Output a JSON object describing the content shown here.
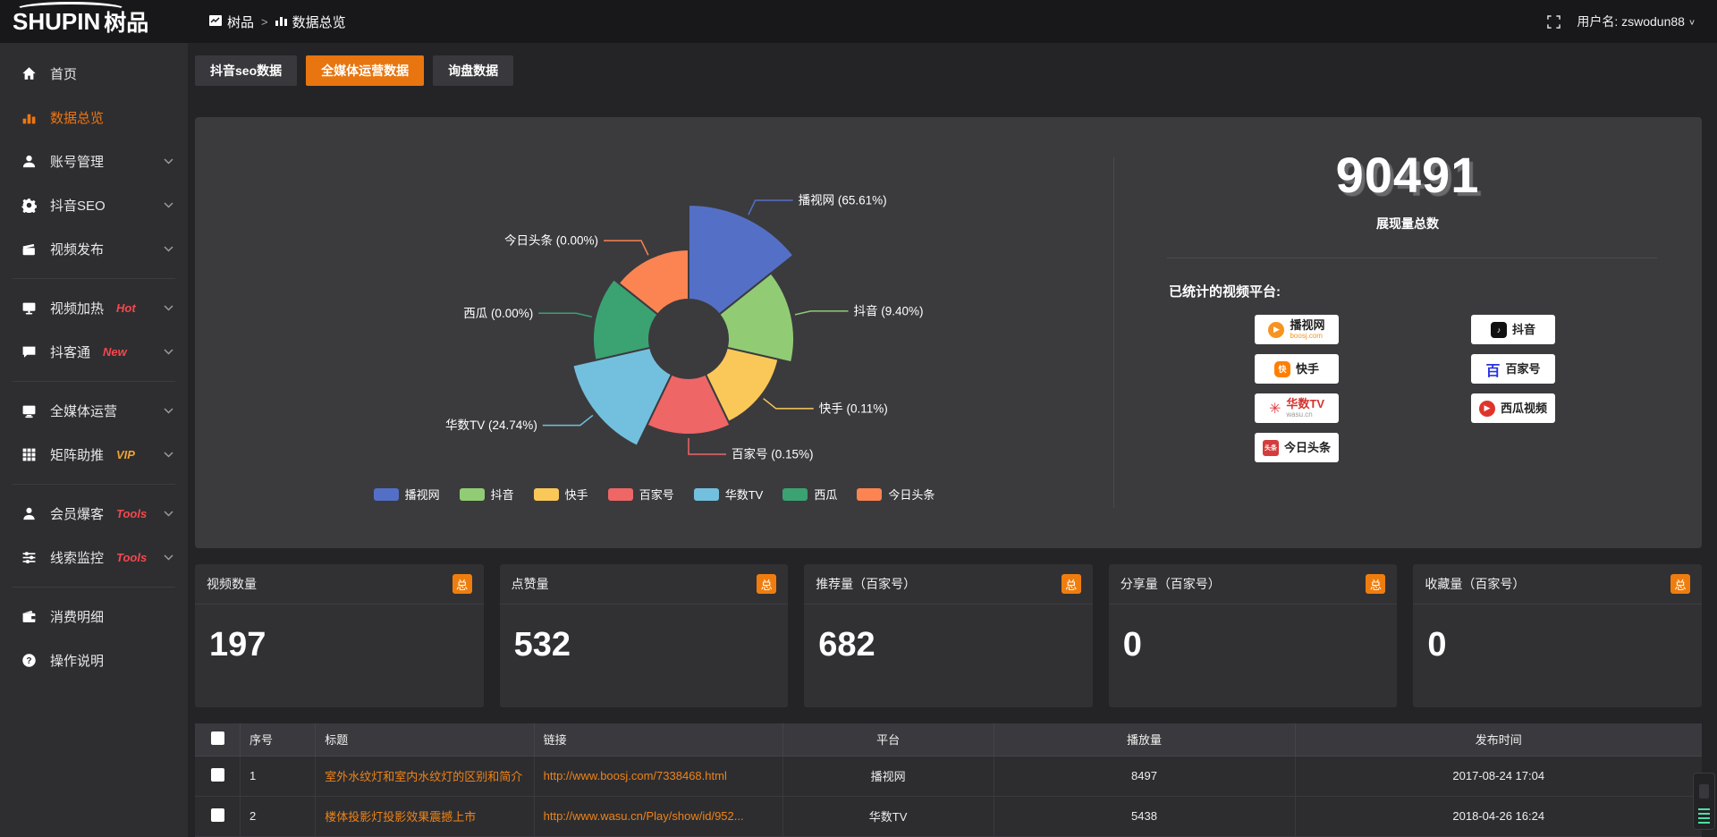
{
  "header": {
    "logo_text": "SHUPIN",
    "logo_cn": "树品",
    "breadcrumb": [
      "树品",
      "数据总览"
    ],
    "username": "用户名: zswodun88"
  },
  "sidebar": {
    "items": [
      {
        "label": "首页",
        "icon": "home"
      },
      {
        "label": "数据总览",
        "icon": "bars",
        "active": true
      },
      {
        "label": "账号管理",
        "icon": "user",
        "chevron": true
      },
      {
        "label": "抖音SEO",
        "icon": "gear",
        "chevron": true
      },
      {
        "label": "视频发布",
        "icon": "video",
        "chevron": true,
        "divider_after": true
      },
      {
        "label": "视频加热",
        "icon": "monitor",
        "badge": "Hot",
        "badge_color": "#f4484d",
        "chevron": true
      },
      {
        "label": "抖客通",
        "icon": "chat",
        "badge": "New",
        "badge_color": "#f4484d",
        "chevron": true,
        "divider_after": true
      },
      {
        "label": "全媒体运营",
        "icon": "screen",
        "chevron": true
      },
      {
        "label": "矩阵助推",
        "icon": "grid",
        "badge": "VIP",
        "badge_color": "#eea32d",
        "chevron": true,
        "divider_after": true
      },
      {
        "label": "会员爆客",
        "icon": "person",
        "badge": "Tools",
        "badge_color": "#f4484d",
        "chevron": true
      },
      {
        "label": "线索监控",
        "icon": "sliders",
        "badge": "Tools",
        "badge_color": "#f4484d",
        "chevron": true,
        "divider_after": true
      },
      {
        "label": "消费明细",
        "icon": "wallet"
      },
      {
        "label": "操作说明",
        "icon": "question"
      }
    ]
  },
  "tabs": [
    {
      "label": "抖音seo数据",
      "active": false
    },
    {
      "label": "全媒体运营数据",
      "active": true
    },
    {
      "label": "询盘数据",
      "active": false
    }
  ],
  "chart_data": {
    "type": "pie",
    "variant": "rose",
    "inner_radius": 44,
    "legend_position": "bottom",
    "series": [
      {
        "name": "播视网",
        "value": 65.61,
        "label": "播视网 (65.61%)",
        "color": "#5470c6",
        "radius": 150
      },
      {
        "name": "抖音",
        "value": 9.4,
        "label": "抖音 (9.40%)",
        "color": "#91cc75",
        "radius": 118
      },
      {
        "name": "快手",
        "value": 0.11,
        "label": "快手 (0.11%)",
        "color": "#fac858",
        "radius": 103
      },
      {
        "name": "百家号",
        "value": 0.15,
        "label": "百家号 (0.15%)",
        "color": "#ee6666",
        "radius": 107
      },
      {
        "name": "华数TV",
        "value": 24.74,
        "label": "华数TV (24.74%)",
        "color": "#73c0de",
        "radius": 133
      },
      {
        "name": "西瓜",
        "value": 0.0,
        "label": "西瓜 (0.00%)",
        "color": "#3ba272",
        "radius": 107
      },
      {
        "name": "今日头条",
        "value": 0.0,
        "label": "今日头条 (0.00%)",
        "color": "#fc8452",
        "radius": 100
      }
    ]
  },
  "summary": {
    "total_value": "90491",
    "total_label": "展现量总数",
    "platforms_label": "已统计的视频平台:",
    "platform_cols": [
      [
        {
          "name": "播视网",
          "sub": "boosj.com",
          "sub_color": "#f79420",
          "logo_type": "square",
          "logo_glyph": "▶",
          "logo_color": "#f79420",
          "logo_radius": "9px"
        },
        {
          "name": "快手",
          "logo_type": "square",
          "logo_glyph": "快",
          "logo_color": "#ff7e00",
          "logo_radius": "5px"
        },
        {
          "name": "华数TV",
          "name_color": "#d5342f",
          "sub": "wasu.cn",
          "sub_color": "#999999",
          "logo_type": "text",
          "logo_glyph": "✳",
          "logo_color": "#e03a3e"
        },
        {
          "name": "今日头条",
          "logo_type": "square",
          "logo_glyph": "头条",
          "logo_color": "#d43d3d",
          "logo_radius": "3px"
        }
      ],
      [
        {
          "name": "抖音",
          "logo_type": "square",
          "logo_glyph": "♪",
          "logo_color": "#111111",
          "logo_radius": "4px"
        },
        {
          "name": "百家号",
          "logo_type": "text",
          "logo_glyph": "百",
          "logo_color": "#2932e1"
        },
        {
          "name": "西瓜视频",
          "logo_type": "square",
          "logo_glyph": "▶",
          "logo_color": "#e0342b",
          "logo_radius": "9px"
        }
      ]
    ]
  },
  "stat_cards": [
    {
      "label": "视频数量",
      "badge": "总",
      "value": "197"
    },
    {
      "label": "点赞量",
      "badge": "总",
      "value": "532"
    },
    {
      "label": "推荐量（百家号）",
      "badge": "总",
      "value": "682"
    },
    {
      "label": "分享量（百家号）",
      "badge": "总",
      "value": "0"
    },
    {
      "label": "收藏量（百家号）",
      "badge": "总",
      "value": "0"
    }
  ],
  "table": {
    "columns": [
      "",
      "序号",
      "标题",
      "链接",
      "平台",
      "播放量",
      "发布时间"
    ],
    "rows": [
      {
        "index": "1",
        "title": "室外水纹灯和室内水纹灯的区别和简介",
        "link": "http://www.boosj.com/7338468.html",
        "platform": "播视网",
        "plays": "8497",
        "time": "2017-08-24 17:04"
      },
      {
        "index": "2",
        "title": "楼体投影灯投影效果震撼上市",
        "link": "http://www.wasu.cn/Play/show/id/952...",
        "platform": "华数TV",
        "plays": "5438",
        "time": "2018-04-26 16:24"
      }
    ]
  }
}
